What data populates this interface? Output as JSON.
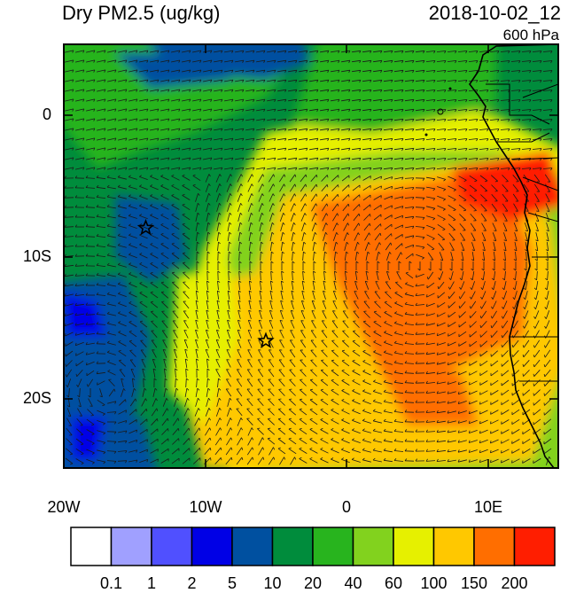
{
  "header": {
    "title": "Dry PM2.5 (ug/kg)",
    "datetime": "2018-10-02_12",
    "level": "600 hPa"
  },
  "axes": {
    "y_ticks": [
      "0",
      "10S",
      "20S"
    ],
    "x_ticks": [
      "20W",
      "10W",
      "0",
      "10E"
    ]
  },
  "map": {
    "region": "southeast Atlantic / west-central Africa",
    "lon_range": [
      -20,
      15
    ],
    "lat_range": [
      -25,
      5
    ],
    "markers": [
      {
        "icon": "star-icon",
        "lon": -14.2,
        "lat": -8.0
      },
      {
        "icon": "star-icon",
        "lon": -5.7,
        "lat": -16.0
      }
    ]
  },
  "colorbar": {
    "labels": [
      "0.1",
      "1",
      "2",
      "5",
      "10",
      "20",
      "40",
      "60",
      "100",
      "150",
      "200"
    ],
    "colors": [
      "#ffffff",
      "#a0a0ff",
      "#5050ff",
      "#0000e6",
      "#0050a0",
      "#008c3c",
      "#28b41e",
      "#82d21e",
      "#e6f000",
      "#ffc800",
      "#ff6e00",
      "#ff1e00"
    ]
  }
}
